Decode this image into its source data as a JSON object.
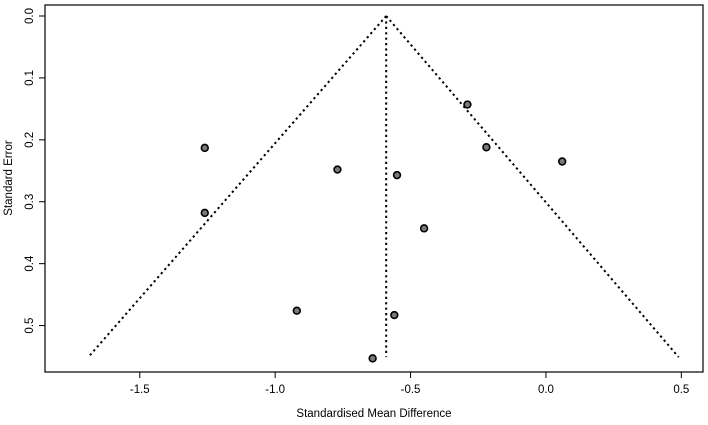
{
  "chart_data": {
    "type": "scatter",
    "title": "",
    "xlabel": "Standardised Mean Difference",
    "ylabel": "Standard Error",
    "xlim": [
      -1.85,
      0.58
    ],
    "ylim": [
      0.0,
      0.575
    ],
    "y_reversed": true,
    "xticks": [
      -1.5,
      -1.0,
      -0.5,
      0.0,
      0.5
    ],
    "xtick_labels": [
      "-1.5",
      "-1.0",
      "-0.5",
      "0.0",
      "0.5"
    ],
    "yticks": [
      0.0,
      0.1,
      0.2,
      0.3,
      0.4,
      0.5
    ],
    "ytick_labels": [
      "0.0",
      "0.1",
      "0.2",
      "0.3",
      "0.4",
      "0.5"
    ],
    "grid": false,
    "legend": "none",
    "pooled_estimate": -0.59,
    "funnel_se_max": 0.551,
    "funnel_lines": [
      {
        "name": "pseudo-ci-left",
        "x": [
          -0.59,
          -1.69
        ],
        "y": [
          0.0,
          0.551
        ]
      },
      {
        "name": "pseudo-ci-right",
        "x": [
          -0.59,
          0.49
        ],
        "y": [
          0.0,
          0.551
        ]
      },
      {
        "name": "pooled-estimate",
        "x": [
          -0.59,
          -0.59
        ],
        "y": [
          0.0,
          0.551
        ]
      }
    ],
    "points": [
      {
        "x": -1.26,
        "y": 0.213
      },
      {
        "x": -1.26,
        "y": 0.318
      },
      {
        "x": -0.77,
        "y": 0.248
      },
      {
        "x": -0.92,
        "y": 0.476
      },
      {
        "x": -0.55,
        "y": 0.257
      },
      {
        "x": -0.56,
        "y": 0.483
      },
      {
        "x": -0.64,
        "y": 0.553
      },
      {
        "x": -0.45,
        "y": 0.343
      },
      {
        "x": -0.29,
        "y": 0.143
      },
      {
        "x": -0.22,
        "y": 0.212
      },
      {
        "x": 0.06,
        "y": 0.235
      }
    ],
    "colors": {
      "axis": "#000000",
      "point_fill": "#7a7a7a",
      "point_stroke": "#000000",
      "funnel_line": "#000000"
    }
  }
}
